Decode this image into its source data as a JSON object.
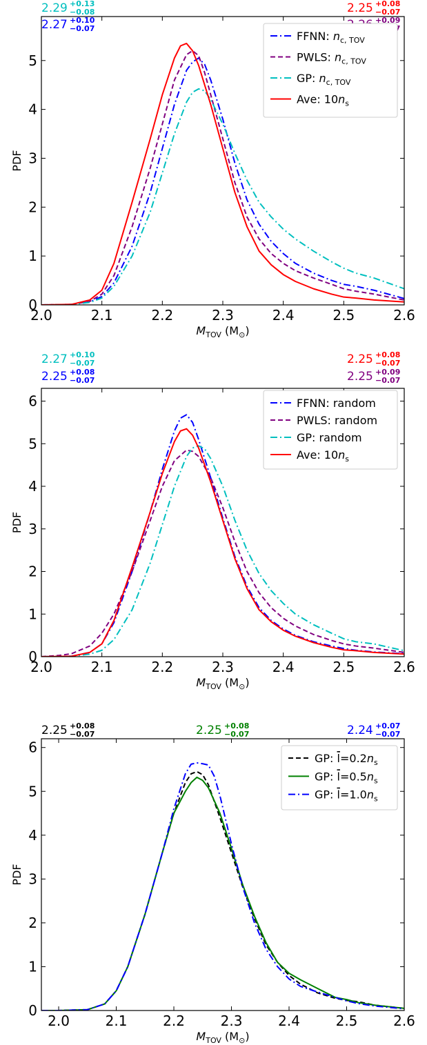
{
  "chart_data": [
    {
      "type": "line",
      "xlabel_main": "M",
      "xlabel_sub": "TOV",
      "xlabel_unit": " (M",
      "xlabel_unit_sub": "⊙",
      "xlabel_close": ")",
      "ylabel": "PDF",
      "xlim": [
        2.0,
        2.6
      ],
      "ylim": [
        0,
        5.9
      ],
      "xticks": [
        2.0,
        2.1,
        2.2,
        2.3,
        2.4,
        2.5,
        2.6
      ],
      "xtick_labels": [
        "2.0",
        "2.1",
        "2.2",
        "2.3",
        "2.4",
        "2.5",
        "2.6"
      ],
      "yticks": [
        0,
        1,
        2,
        3,
        4,
        5
      ],
      "ytick_labels": [
        "0",
        "1",
        "2",
        "3",
        "4",
        "5"
      ],
      "legend_position": "top-right",
      "annotations": [
        {
          "base": "2.29",
          "sup": "+0.13",
          "sub": "−0.08",
          "color": "#00bfbf",
          "position": "top-left-upper"
        },
        {
          "base": "2.27",
          "sup": "+0.10",
          "sub": "−0.07",
          "color": "#0000ff",
          "position": "top-left-lower"
        },
        {
          "base": "2.25",
          "sup": "+0.08",
          "sub": "−0.07",
          "color": "#ff0000",
          "position": "top-right-upper"
        },
        {
          "base": "2.26",
          "sup": "+0.09",
          "sub": "−0.07",
          "color": "#800080",
          "position": "top-right-lower"
        }
      ],
      "series": [
        {
          "label_prefix": "FFNN: ",
          "label_var": "n",
          "label_sub": "c, TOV",
          "color": "#0000ff",
          "dash": "dashdot",
          "x": [
            2.0,
            2.05,
            2.08,
            2.1,
            2.12,
            2.15,
            2.18,
            2.2,
            2.22,
            2.24,
            2.25,
            2.26,
            2.27,
            2.28,
            2.3,
            2.32,
            2.34,
            2.36,
            2.38,
            2.4,
            2.42,
            2.45,
            2.48,
            2.5,
            2.52,
            2.55,
            2.6
          ],
          "y": [
            0,
            0.01,
            0.06,
            0.17,
            0.45,
            1.2,
            2.3,
            3.2,
            4.1,
            4.8,
            4.97,
            5.05,
            4.92,
            4.6,
            3.8,
            2.9,
            2.15,
            1.65,
            1.3,
            1.05,
            0.85,
            0.65,
            0.5,
            0.42,
            0.38,
            0.3,
            0.13
          ]
        },
        {
          "label_prefix": "PWLS: ",
          "label_var": "n",
          "label_sub": "c, TOV",
          "color": "#800080",
          "dash": "dashed",
          "x": [
            2.0,
            2.05,
            2.08,
            2.1,
            2.12,
            2.15,
            2.18,
            2.2,
            2.22,
            2.24,
            2.25,
            2.26,
            2.27,
            2.28,
            2.3,
            2.32,
            2.34,
            2.36,
            2.38,
            2.4,
            2.42,
            2.45,
            2.48,
            2.5,
            2.52,
            2.55,
            2.6
          ],
          "y": [
            0,
            0.01,
            0.07,
            0.22,
            0.6,
            1.6,
            2.8,
            3.7,
            4.6,
            5.12,
            5.2,
            5.1,
            4.75,
            4.3,
            3.4,
            2.5,
            1.8,
            1.35,
            1.05,
            0.85,
            0.7,
            0.55,
            0.42,
            0.33,
            0.28,
            0.22,
            0.1
          ]
        },
        {
          "label_prefix": "GP: ",
          "label_var": "n",
          "label_sub": "c, TOV",
          "color": "#00bfbf",
          "dash": "dashdot",
          "x": [
            2.0,
            2.05,
            2.08,
            2.1,
            2.12,
            2.15,
            2.18,
            2.2,
            2.22,
            2.24,
            2.25,
            2.26,
            2.27,
            2.28,
            2.3,
            2.32,
            2.34,
            2.36,
            2.38,
            2.4,
            2.42,
            2.45,
            2.48,
            2.5,
            2.52,
            2.55,
            2.6
          ],
          "y": [
            0,
            0.01,
            0.05,
            0.14,
            0.38,
            1.0,
            1.9,
            2.7,
            3.5,
            4.15,
            4.35,
            4.42,
            4.38,
            4.2,
            3.7,
            3.1,
            2.55,
            2.1,
            1.8,
            1.55,
            1.35,
            1.1,
            0.88,
            0.75,
            0.65,
            0.55,
            0.33
          ]
        },
        {
          "label_prefix": "Ave: 10",
          "label_var": "n",
          "label_sub": "s",
          "color": "#ff0000",
          "dash": "solid",
          "x": [
            2.0,
            2.05,
            2.08,
            2.1,
            2.12,
            2.15,
            2.18,
            2.2,
            2.22,
            2.23,
            2.24,
            2.25,
            2.26,
            2.28,
            2.3,
            2.32,
            2.34,
            2.36,
            2.38,
            2.4,
            2.42,
            2.45,
            2.48,
            2.5,
            2.52,
            2.55,
            2.6
          ],
          "y": [
            0,
            0.01,
            0.1,
            0.3,
            0.85,
            2.1,
            3.4,
            4.3,
            5.05,
            5.3,
            5.35,
            5.2,
            4.9,
            4.1,
            3.2,
            2.3,
            1.6,
            1.1,
            0.82,
            0.62,
            0.48,
            0.33,
            0.22,
            0.16,
            0.14,
            0.1,
            0.06
          ]
        }
      ]
    },
    {
      "type": "line",
      "xlabel_main": "M",
      "xlabel_sub": "TOV",
      "xlabel_unit": " (M",
      "xlabel_unit_sub": "⊙",
      "xlabel_close": ")",
      "ylabel": "PDF",
      "xlim": [
        2.0,
        2.6
      ],
      "ylim": [
        0,
        6.3
      ],
      "xticks": [
        2.0,
        2.1,
        2.2,
        2.3,
        2.4,
        2.5,
        2.6
      ],
      "xtick_labels": [
        "2.0",
        "2.1",
        "2.2",
        "2.3",
        "2.4",
        "2.5",
        "2.6"
      ],
      "yticks": [
        0,
        1,
        2,
        3,
        4,
        5,
        6
      ],
      "ytick_labels": [
        "0",
        "1",
        "2",
        "3",
        "4",
        "5",
        "6"
      ],
      "legend_position": "top-right",
      "annotations": [
        {
          "base": "2.27",
          "sup": "+0.10",
          "sub": "−0.07",
          "color": "#00bfbf",
          "position": "top-left-upper"
        },
        {
          "base": "2.25",
          "sup": "+0.08",
          "sub": "−0.07",
          "color": "#0000ff",
          "position": "top-left-lower"
        },
        {
          "base": "2.25",
          "sup": "+0.08",
          "sub": "−0.07",
          "color": "#ff0000",
          "position": "top-right-upper"
        },
        {
          "base": "2.25",
          "sup": "+0.09",
          "sub": "−0.07",
          "color": "#800080",
          "position": "top-right-lower"
        }
      ],
      "series": [
        {
          "label_prefix": "FFNN: random",
          "label_var": "",
          "label_sub": "",
          "color": "#0000ff",
          "dash": "dashdot",
          "x": [
            2.0,
            2.05,
            2.08,
            2.1,
            2.12,
            2.15,
            2.18,
            2.2,
            2.22,
            2.23,
            2.24,
            2.25,
            2.26,
            2.28,
            2.3,
            2.32,
            2.34,
            2.36,
            2.38,
            2.4,
            2.42,
            2.45,
            2.48,
            2.5,
            2.52,
            2.55,
            2.6
          ],
          "y": [
            0,
            0.01,
            0.1,
            0.3,
            0.8,
            2.0,
            3.4,
            4.4,
            5.3,
            5.6,
            5.68,
            5.5,
            5.1,
            4.2,
            3.25,
            2.35,
            1.65,
            1.15,
            0.85,
            0.65,
            0.5,
            0.35,
            0.25,
            0.19,
            0.15,
            0.11,
            0.07
          ]
        },
        {
          "label_prefix": "PWLS: random",
          "label_var": "",
          "label_sub": "",
          "color": "#800080",
          "dash": "dashed",
          "x": [
            2.0,
            2.03,
            2.05,
            2.08,
            2.1,
            2.12,
            2.15,
            2.18,
            2.2,
            2.22,
            2.24,
            2.25,
            2.26,
            2.28,
            2.3,
            2.32,
            2.34,
            2.36,
            2.38,
            2.4,
            2.42,
            2.45,
            2.48,
            2.5,
            2.52,
            2.55,
            2.6
          ],
          "y": [
            0,
            0.03,
            0.07,
            0.25,
            0.55,
            1.0,
            2.0,
            3.2,
            4.0,
            4.6,
            4.85,
            4.82,
            4.7,
            4.2,
            3.5,
            2.7,
            2.0,
            1.5,
            1.15,
            0.9,
            0.72,
            0.52,
            0.38,
            0.3,
            0.25,
            0.2,
            0.1
          ]
        },
        {
          "label_prefix": "GP: random",
          "label_var": "",
          "label_sub": "",
          "color": "#00bfbf",
          "dash": "dashdot",
          "x": [
            2.0,
            2.05,
            2.08,
            2.1,
            2.12,
            2.15,
            2.18,
            2.2,
            2.22,
            2.24,
            2.25,
            2.26,
            2.27,
            2.28,
            2.3,
            2.32,
            2.34,
            2.36,
            2.38,
            2.4,
            2.42,
            2.45,
            2.48,
            2.5,
            2.52,
            2.55,
            2.6
          ],
          "y": [
            0,
            0.01,
            0.06,
            0.15,
            0.4,
            1.1,
            2.2,
            3.1,
            4.0,
            4.7,
            4.9,
            4.95,
            4.88,
            4.65,
            4.0,
            3.2,
            2.5,
            1.95,
            1.55,
            1.25,
            1.0,
            0.75,
            0.55,
            0.42,
            0.35,
            0.3,
            0.14
          ]
        },
        {
          "label_prefix": "Ave: 10",
          "label_var": "n",
          "label_sub": "s",
          "color": "#ff0000",
          "dash": "solid",
          "x": [
            2.0,
            2.05,
            2.08,
            2.1,
            2.12,
            2.15,
            2.18,
            2.2,
            2.22,
            2.23,
            2.24,
            2.25,
            2.26,
            2.28,
            2.3,
            2.32,
            2.34,
            2.36,
            2.38,
            2.4,
            2.42,
            2.45,
            2.48,
            2.5,
            2.52,
            2.55,
            2.6
          ],
          "y": [
            0,
            0.01,
            0.1,
            0.3,
            0.85,
            2.1,
            3.4,
            4.3,
            5.05,
            5.3,
            5.35,
            5.2,
            4.9,
            4.1,
            3.2,
            2.3,
            1.6,
            1.1,
            0.82,
            0.62,
            0.48,
            0.33,
            0.22,
            0.16,
            0.14,
            0.1,
            0.06
          ]
        }
      ]
    },
    {
      "type": "line",
      "xlabel_main": "M",
      "xlabel_sub": "TOV",
      "xlabel_unit": " (M",
      "xlabel_unit_sub": "⊙",
      "xlabel_close": ")",
      "ylabel": "PDF",
      "xlim": [
        1.97,
        2.6
      ],
      "ylim": [
        0,
        6.2
      ],
      "xticks": [
        2.0,
        2.1,
        2.2,
        2.3,
        2.4,
        2.5,
        2.6
      ],
      "xtick_labels": [
        "2.0",
        "2.1",
        "2.2",
        "2.3",
        "2.4",
        "2.5",
        "2.6"
      ],
      "yticks": [
        0,
        1,
        2,
        3,
        4,
        5,
        6
      ],
      "ytick_labels": [
        "0",
        "1",
        "2",
        "3",
        "4",
        "5",
        "6"
      ],
      "legend_position": "top-right",
      "annotations": [
        {
          "base": "2.25",
          "sup": "+0.08",
          "sub": "−0.07",
          "color": "#000000",
          "position": "top-left"
        },
        {
          "base": "2.25",
          "sup": "+0.08",
          "sub": "−0.07",
          "color": "#008000",
          "position": "top-center"
        },
        {
          "base": "2.24",
          "sup": "+0.07",
          "sub": "−0.07",
          "color": "#0000ff",
          "position": "top-right"
        }
      ],
      "series": [
        {
          "label_prefix": "GP: ",
          "label_var": "l",
          "label_mid": "=0.2",
          "label_var2": "n",
          "label_sub": "s",
          "color": "#000000",
          "dash": "dashed",
          "x": [
            1.97,
            2.0,
            2.05,
            2.08,
            2.1,
            2.12,
            2.15,
            2.18,
            2.2,
            2.22,
            2.23,
            2.24,
            2.25,
            2.26,
            2.28,
            2.3,
            2.32,
            2.34,
            2.36,
            2.38,
            2.4,
            2.42,
            2.45,
            2.48,
            2.5,
            2.52,
            2.55,
            2.6
          ],
          "y": [
            0,
            0,
            0.02,
            0.15,
            0.45,
            1.0,
            2.2,
            3.6,
            4.5,
            5.2,
            5.4,
            5.45,
            5.38,
            5.15,
            4.4,
            3.6,
            2.8,
            2.1,
            1.5,
            1.1,
            0.8,
            0.6,
            0.4,
            0.28,
            0.23,
            0.2,
            0.12,
            0.05
          ]
        },
        {
          "label_prefix": "GP: ",
          "label_var": "l",
          "label_mid": "=0.5",
          "label_var2": "n",
          "label_sub": "s",
          "color": "#008000",
          "dash": "solid",
          "x": [
            1.97,
            2.0,
            2.05,
            2.08,
            2.1,
            2.12,
            2.15,
            2.18,
            2.2,
            2.22,
            2.23,
            2.24,
            2.25,
            2.26,
            2.28,
            2.3,
            2.32,
            2.34,
            2.36,
            2.38,
            2.4,
            2.42,
            2.45,
            2.48,
            2.5,
            2.52,
            2.55,
            2.6
          ],
          "y": [
            0,
            0,
            0.02,
            0.15,
            0.45,
            1.0,
            2.2,
            3.6,
            4.5,
            5.0,
            5.2,
            5.32,
            5.25,
            5.08,
            4.5,
            3.7,
            2.85,
            2.15,
            1.55,
            1.1,
            0.85,
            0.7,
            0.5,
            0.3,
            0.25,
            0.18,
            0.12,
            0.05
          ]
        },
        {
          "label_prefix": "GP: ",
          "label_var": "l",
          "label_mid": "=1.0",
          "label_var2": "n",
          "label_sub": "s",
          "color": "#0000ff",
          "dash": "dashdot",
          "x": [
            1.97,
            2.0,
            2.05,
            2.08,
            2.1,
            2.12,
            2.15,
            2.18,
            2.2,
            2.22,
            2.23,
            2.24,
            2.25,
            2.26,
            2.27,
            2.28,
            2.3,
            2.32,
            2.34,
            2.36,
            2.38,
            2.4,
            2.42,
            2.45,
            2.48,
            2.5,
            2.52,
            2.55,
            2.6
          ],
          "y": [
            0,
            0,
            0.02,
            0.15,
            0.45,
            1.0,
            2.2,
            3.6,
            4.6,
            5.4,
            5.62,
            5.65,
            5.63,
            5.6,
            5.35,
            4.9,
            3.8,
            2.8,
            2.0,
            1.4,
            1.0,
            0.72,
            0.55,
            0.42,
            0.3,
            0.22,
            0.16,
            0.1,
            0.04
          ]
        }
      ]
    }
  ]
}
